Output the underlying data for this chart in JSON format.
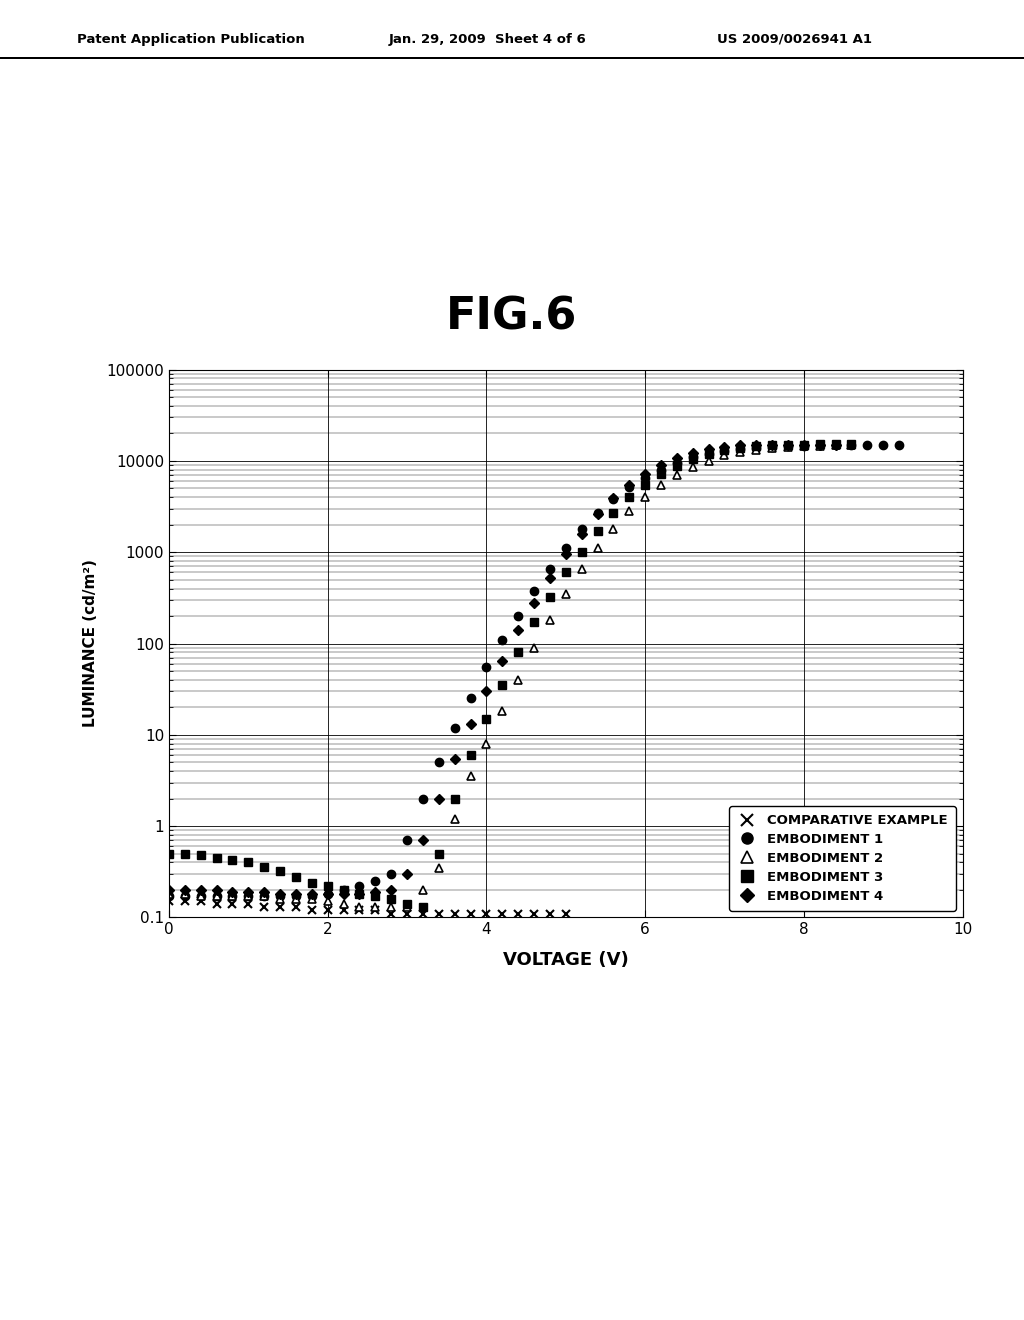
{
  "title": "FIG.6",
  "xlabel": "VOLTAGE (V)",
  "ylabel": "LUMINANCE (cd/m²)",
  "xlim": [
    0,
    10
  ],
  "ylim": [
    0.1,
    100000
  ],
  "header_left": "Patent Application Publication",
  "header_center": "Jan. 29, 2009  Sheet 4 of 6",
  "header_right": "US 2009/0026941 A1",
  "comparative": {
    "label": "COMPARATIVE EXAMPLE",
    "voltage": [
      0.0,
      0.2,
      0.4,
      0.6,
      0.8,
      1.0,
      1.2,
      1.4,
      1.6,
      1.8,
      2.0,
      2.2,
      2.4,
      2.6,
      2.8,
      3.0,
      3.2,
      3.4,
      3.6,
      3.8,
      4.0,
      4.2,
      4.4,
      4.6,
      4.8,
      5.0
    ],
    "luminance": [
      0.15,
      0.15,
      0.15,
      0.14,
      0.14,
      0.14,
      0.13,
      0.13,
      0.13,
      0.12,
      0.12,
      0.12,
      0.12,
      0.12,
      0.11,
      0.11,
      0.11,
      0.11,
      0.11,
      0.11,
      0.11,
      0.11,
      0.11,
      0.11,
      0.11,
      0.11
    ]
  },
  "embodiment1": {
    "label": "EMBODIMENT 1",
    "voltage": [
      0.0,
      0.2,
      0.4,
      0.6,
      0.8,
      1.0,
      1.2,
      1.4,
      1.6,
      1.8,
      2.0,
      2.2,
      2.4,
      2.6,
      2.8,
      3.0,
      3.2,
      3.4,
      3.6,
      3.8,
      4.0,
      4.2,
      4.4,
      4.6,
      4.8,
      5.0,
      5.2,
      5.4,
      5.6,
      5.8,
      6.0,
      6.2,
      6.4,
      6.6,
      6.8,
      7.0,
      7.2,
      7.4,
      7.6,
      7.8,
      8.0,
      8.2,
      8.4,
      8.6,
      8.8,
      9.0,
      9.2
    ],
    "luminance": [
      0.17,
      0.17,
      0.17,
      0.17,
      0.17,
      0.17,
      0.17,
      0.17,
      0.17,
      0.17,
      0.18,
      0.2,
      0.22,
      0.25,
      0.3,
      0.7,
      2.0,
      5.0,
      12.0,
      25.0,
      55.0,
      110.0,
      200.0,
      380.0,
      650.0,
      1100.0,
      1800.0,
      2700.0,
      3800.0,
      5200.0,
      6500.0,
      8000.0,
      9500.0,
      11000.0,
      12000.0,
      12800.0,
      13400.0,
      13900.0,
      14200.0,
      14500.0,
      14700.0,
      14800.0,
      14900.0,
      15000.0,
      15000.0,
      15000.0,
      15000.0
    ]
  },
  "embodiment2": {
    "label": "EMBODIMENT 2",
    "voltage": [
      0.0,
      0.2,
      0.4,
      0.6,
      0.8,
      1.0,
      1.2,
      1.4,
      1.6,
      1.8,
      2.0,
      2.2,
      2.4,
      2.6,
      2.8,
      3.0,
      3.2,
      3.4,
      3.6,
      3.8,
      4.0,
      4.2,
      4.4,
      4.6,
      4.8,
      5.0,
      5.2,
      5.4,
      5.6,
      5.8,
      6.0,
      6.2,
      6.4,
      6.6,
      6.8,
      7.0,
      7.2,
      7.4,
      7.6,
      7.8,
      8.0,
      8.2,
      8.4,
      8.6
    ],
    "luminance": [
      0.18,
      0.18,
      0.17,
      0.17,
      0.17,
      0.17,
      0.17,
      0.16,
      0.16,
      0.16,
      0.15,
      0.14,
      0.13,
      0.13,
      0.13,
      0.13,
      0.2,
      0.35,
      1.2,
      3.5,
      8.0,
      18.0,
      40.0,
      90.0,
      180.0,
      350.0,
      650.0,
      1100.0,
      1800.0,
      2800.0,
      4000.0,
      5500.0,
      7000.0,
      8500.0,
      10000.0,
      11500.0,
      12500.0,
      13200.0,
      13800.0,
      14200.0,
      14500.0,
      14700.0,
      14900.0,
      15000.0
    ]
  },
  "embodiment3": {
    "label": "EMBODIMENT 3",
    "voltage": [
      0.0,
      0.2,
      0.4,
      0.6,
      0.8,
      1.0,
      1.2,
      1.4,
      1.6,
      1.8,
      2.0,
      2.2,
      2.4,
      2.6,
      2.8,
      3.0,
      3.2,
      3.4,
      3.6,
      3.8,
      4.0,
      4.2,
      4.4,
      4.6,
      4.8,
      5.0,
      5.2,
      5.4,
      5.6,
      5.8,
      6.0,
      6.2,
      6.4,
      6.6,
      6.8,
      7.0,
      7.2,
      7.4,
      7.6,
      7.8,
      8.0,
      8.2,
      8.4,
      8.6
    ],
    "luminance": [
      0.5,
      0.5,
      0.48,
      0.45,
      0.42,
      0.4,
      0.36,
      0.32,
      0.28,
      0.24,
      0.22,
      0.2,
      0.18,
      0.17,
      0.16,
      0.14,
      0.13,
      0.5,
      2.0,
      6.0,
      15.0,
      35.0,
      80.0,
      170.0,
      320.0,
      600.0,
      1000.0,
      1700.0,
      2700.0,
      4000.0,
      5500.0,
      7200.0,
      8800.0,
      10500.0,
      12000.0,
      13200.0,
      14000.0,
      14500.0,
      14800.0,
      15000.0,
      15100.0,
      15200.0,
      15200.0,
      15200.0
    ]
  },
  "embodiment4": {
    "label": "EMBODIMENT 4",
    "voltage": [
      0.0,
      0.2,
      0.4,
      0.6,
      0.8,
      1.0,
      1.2,
      1.4,
      1.6,
      1.8,
      2.0,
      2.2,
      2.4,
      2.6,
      2.8,
      3.0,
      3.2,
      3.4,
      3.6,
      3.8,
      4.0,
      4.2,
      4.4,
      4.6,
      4.8,
      5.0,
      5.2,
      5.4,
      5.6,
      5.8,
      6.0,
      6.2,
      6.4,
      6.6,
      6.8,
      7.0,
      7.2,
      7.4,
      7.6,
      7.8,
      8.0,
      8.2,
      8.4
    ],
    "luminance": [
      0.2,
      0.2,
      0.2,
      0.2,
      0.19,
      0.19,
      0.19,
      0.18,
      0.18,
      0.18,
      0.18,
      0.18,
      0.18,
      0.19,
      0.2,
      0.3,
      0.7,
      2.0,
      5.5,
      13.0,
      30.0,
      65.0,
      140.0,
      280.0,
      520.0,
      950.0,
      1600.0,
      2600.0,
      3900.0,
      5500.0,
      7200.0,
      9000.0,
      10700.0,
      12200.0,
      13400.0,
      14300.0,
      14800.0,
      15000.0,
      15100.0,
      15100.0,
      15100.0,
      15100.0,
      15100.0
    ]
  }
}
